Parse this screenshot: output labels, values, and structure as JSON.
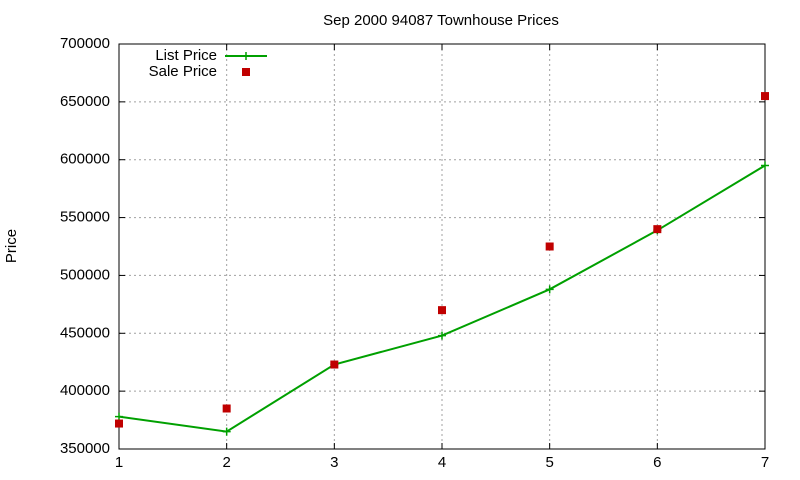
{
  "chart_data": {
    "type": "line",
    "title": "Sep 2000 94087 Townhouse Prices",
    "y_label": "Price",
    "x": [
      1,
      2,
      3,
      4,
      5,
      6,
      7
    ],
    "series": [
      {
        "name": "List Price",
        "color": "#00a000",
        "style": "linespoints",
        "marker": "plus",
        "values": [
          378000,
          365000,
          423000,
          448000,
          488000,
          539000,
          595000
        ]
      },
      {
        "name": "Sale Price",
        "color": "#c00000",
        "style": "points",
        "marker": "square",
        "values": [
          372000,
          385000,
          423000,
          470000,
          525000,
          540000,
          655000
        ]
      }
    ],
    "xlim": [
      1,
      7
    ],
    "xticks": [
      1,
      2,
      3,
      4,
      5,
      6,
      7
    ],
    "ylim": [
      350000,
      700000
    ],
    "yticks": [
      350000,
      400000,
      450000,
      500000,
      550000,
      600000,
      650000,
      700000
    ],
    "grid": true,
    "legend": "top-left"
  }
}
